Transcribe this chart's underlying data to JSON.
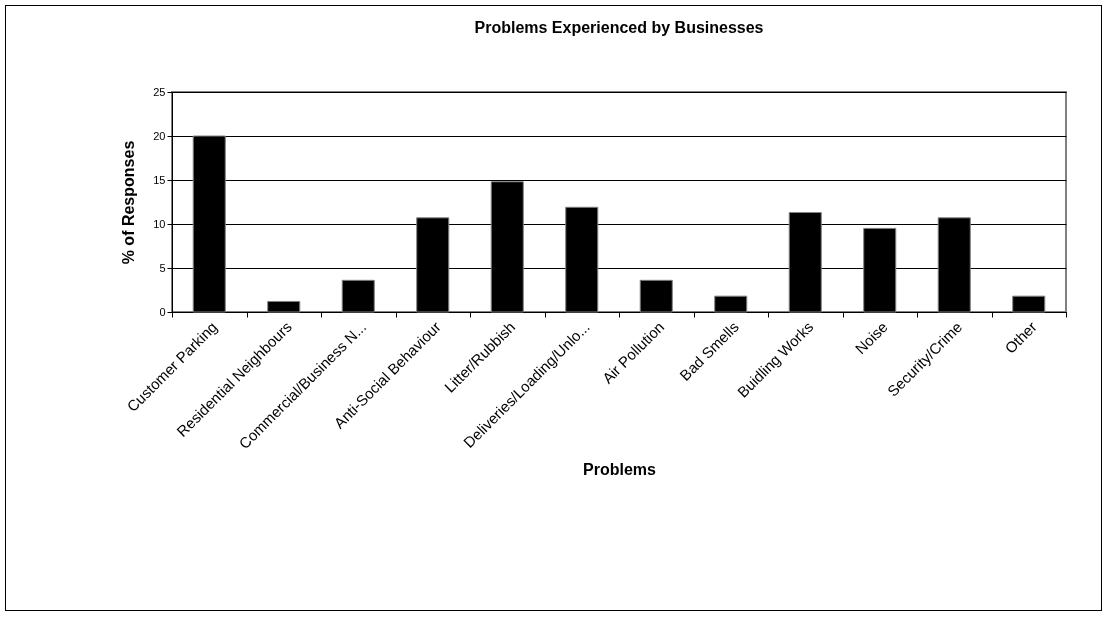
{
  "chart_data": {
    "type": "bar",
    "title": "Problems Experienced by Businesses",
    "xlabel": "Problems",
    "ylabel": "% of Responses",
    "categories": [
      "Customer Parking",
      "Residential Neighbours",
      "Commercial/Business N...",
      "Anti-Social Behaviour",
      "Litter/Rubbish",
      "Deliveries/Loading/Unlo...",
      "Air Pollution",
      "Bad Smells",
      "Buidling Works",
      "Noise",
      "Security/Crime",
      "Other"
    ],
    "values": [
      20,
      1.2,
      3.6,
      10.7,
      14.8,
      11.9,
      3.6,
      1.8,
      11.3,
      9.5,
      10.7,
      1.8
    ],
    "color": "#000000",
    "ylim": [
      0,
      25
    ],
    "yticks": [
      0,
      5,
      10,
      15,
      20,
      25
    ],
    "grid": "y"
  }
}
